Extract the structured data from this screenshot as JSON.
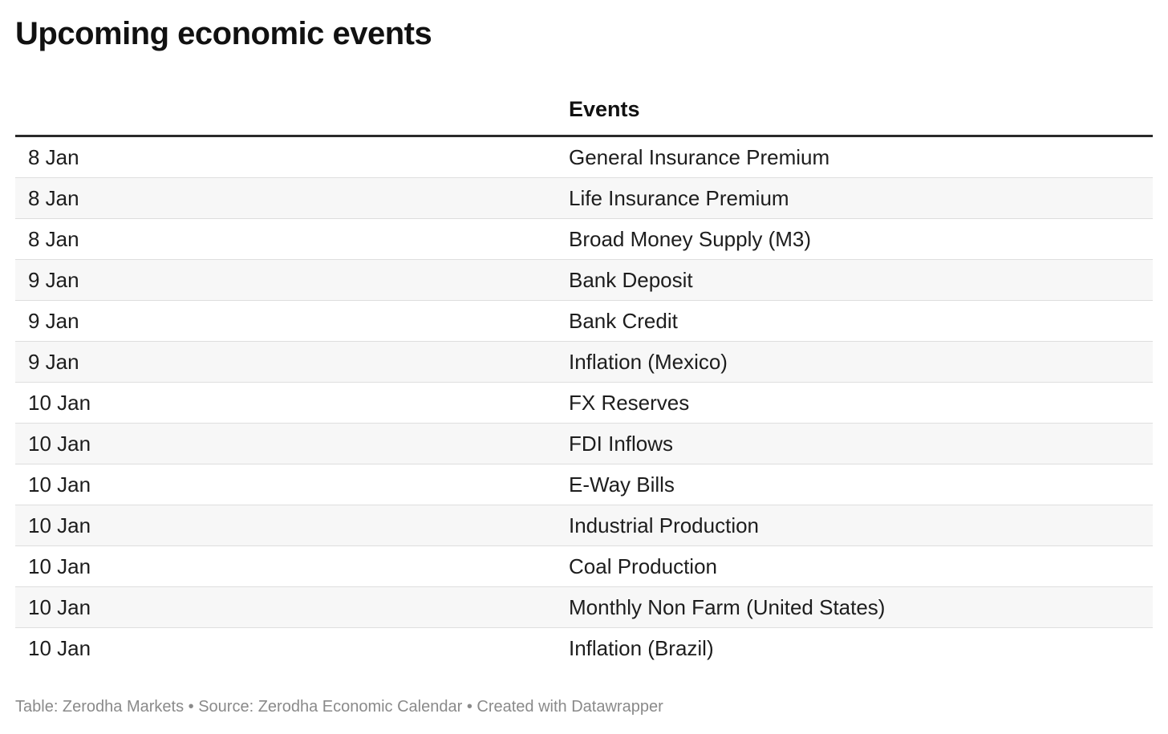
{
  "title": "Upcoming economic events",
  "footer": "Table: Zerodha Markets • Source: Zerodha Economic Calendar • Created with Datawrapper",
  "chart_data": {
    "type": "table",
    "title": "Upcoming economic events",
    "columns": [
      "",
      "Events"
    ],
    "rows": [
      [
        "8 Jan",
        "General Insurance Premium"
      ],
      [
        "8 Jan",
        "Life Insurance Premium"
      ],
      [
        "8 Jan",
        "Broad Money Supply (M3)"
      ],
      [
        "9 Jan",
        "Bank Deposit"
      ],
      [
        "9 Jan",
        "Bank Credit"
      ],
      [
        "9 Jan",
        "Inflation (Mexico)"
      ],
      [
        "10 Jan",
        "FX Reserves"
      ],
      [
        "10 Jan",
        "FDI Inflows"
      ],
      [
        "10 Jan",
        "E-Way Bills"
      ],
      [
        "10 Jan",
        "Industrial Production"
      ],
      [
        "10 Jan",
        "Coal Production"
      ],
      [
        "10 Jan",
        "Monthly Non Farm (United States)"
      ],
      [
        "10 Jan",
        "Inflation (Brazil)"
      ]
    ],
    "colors": {
      "header_rule": "#2a2a2a",
      "row_alt_bg": "#f7f7f7",
      "row_divider": "#dedede",
      "footer_text": "#8a8a8a"
    }
  }
}
